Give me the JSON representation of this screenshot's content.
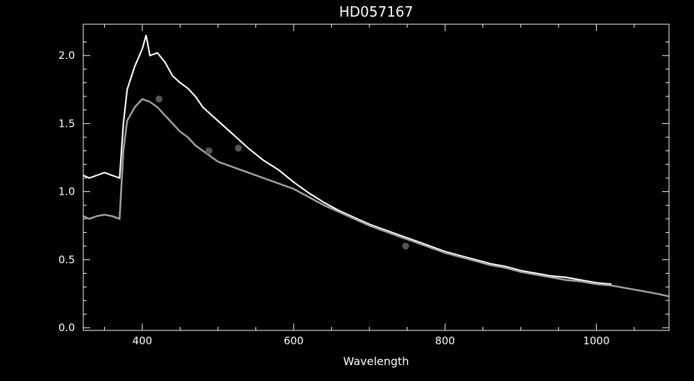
{
  "chart_data": {
    "type": "line",
    "title": "HD057167",
    "xlabel": "Wavelength",
    "ylabel": "",
    "xlim": [
      322,
      1096
    ],
    "ylim": [
      -0.02,
      2.23
    ],
    "xticks": [
      400,
      600,
      800,
      1000
    ],
    "yticks": [
      0.0,
      0.5,
      1.0,
      1.5,
      2.0
    ],
    "ytick_labels": [
      "0.0",
      "0.5",
      "1.0",
      "1.5",
      "2.0"
    ],
    "grid": false,
    "colors": {
      "background": "#000000",
      "axes": "#ffffff",
      "series_white": "#ffffff",
      "series_gray": "#a0a0a0",
      "points": "#555555"
    },
    "series": [
      {
        "style": "white-spectrum",
        "x": [
          322,
          330,
          340,
          350,
          360,
          370,
          375,
          380,
          390,
          400,
          405,
          410,
          420,
          430,
          440,
          450,
          460,
          470,
          480,
          490,
          500,
          520,
          540,
          560,
          580,
          600,
          620,
          640,
          660,
          680,
          700,
          720,
          740,
          760,
          780,
          800,
          820,
          840,
          860,
          880,
          900,
          920,
          940,
          960,
          980,
          1000,
          1020
        ],
        "y": [
          1.12,
          1.1,
          1.12,
          1.14,
          1.12,
          1.1,
          1.5,
          1.75,
          1.92,
          2.05,
          2.15,
          2.0,
          2.02,
          1.95,
          1.85,
          1.8,
          1.76,
          1.7,
          1.62,
          1.57,
          1.52,
          1.42,
          1.32,
          1.23,
          1.16,
          1.07,
          0.99,
          0.92,
          0.86,
          0.81,
          0.76,
          0.72,
          0.68,
          0.64,
          0.6,
          0.56,
          0.53,
          0.5,
          0.47,
          0.45,
          0.42,
          0.4,
          0.38,
          0.37,
          0.35,
          0.33,
          0.32
        ]
      },
      {
        "style": "gray-spectrum",
        "x": [
          322,
          330,
          340,
          350,
          360,
          370,
          375,
          380,
          390,
          400,
          410,
          420,
          430,
          440,
          450,
          460,
          470,
          480,
          490,
          500,
          520,
          540,
          560,
          580,
          600,
          620,
          640,
          660,
          680,
          700,
          720,
          740,
          760,
          780,
          800,
          820,
          840,
          860,
          880,
          900,
          920,
          940,
          960,
          980,
          1000,
          1020,
          1040,
          1060,
          1080,
          1096
        ],
        "y": [
          0.82,
          0.8,
          0.82,
          0.83,
          0.82,
          0.8,
          1.3,
          1.52,
          1.62,
          1.68,
          1.66,
          1.62,
          1.56,
          1.5,
          1.44,
          1.4,
          1.34,
          1.3,
          1.26,
          1.22,
          1.18,
          1.14,
          1.1,
          1.06,
          1.02,
          0.96,
          0.9,
          0.85,
          0.8,
          0.75,
          0.71,
          0.67,
          0.63,
          0.59,
          0.55,
          0.52,
          0.49,
          0.46,
          0.44,
          0.41,
          0.39,
          0.37,
          0.35,
          0.34,
          0.32,
          0.31,
          0.29,
          0.27,
          0.25,
          0.23
        ]
      },
      {
        "style": "photometric-points",
        "x": [
          422,
          488,
          527,
          748
        ],
        "y": [
          1.68,
          1.3,
          1.32,
          0.6
        ]
      }
    ]
  }
}
